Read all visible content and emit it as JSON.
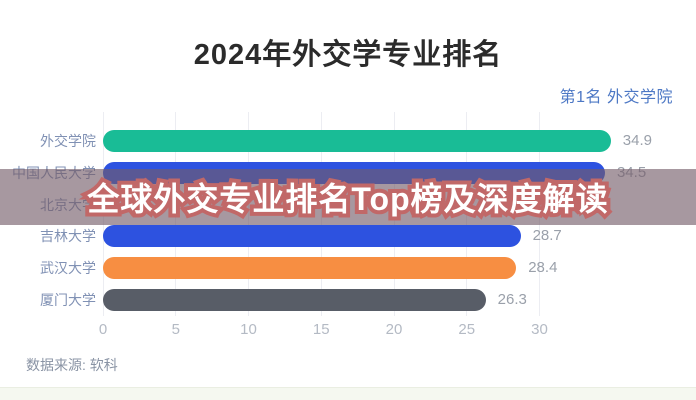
{
  "header": {
    "title": "2024年外交学专业排名",
    "rank_note": "第1名 外交学院"
  },
  "overlay": {
    "title": "全球外交专业排名Top榜及深度解读"
  },
  "footer": {
    "source": "数据来源: 软科"
  },
  "palette": {
    "rank_note_blue": "#4d78c5",
    "banner_background": "rgba(115,92,104,0.63)",
    "banner_text_fill": "#ffffff",
    "banner_text_stroke": "#c16868",
    "category_label": "#8091b4",
    "value_label": "#9aa0aa",
    "tick_label": "#b4bac4"
  },
  "chart_data": {
    "type": "bar",
    "orientation": "horizontal",
    "title": "2024年外交学专业排名",
    "categories": [
      "外交学院",
      "中国人民大学",
      "北京大学",
      "吉林大学",
      "武汉大学",
      "厦门大学"
    ],
    "values": [
      34.9,
      34.5,
      null,
      28.7,
      28.4,
      26.3
    ],
    "value_labels": [
      "34.9",
      "34.5",
      "",
      "28.7",
      "28.4",
      "26.3"
    ],
    "bar_colors": [
      "#19bc96",
      "#2d52e0",
      null,
      "#2d52e0",
      "#f78e42",
      "#585d67"
    ],
    "xticks": [
      0,
      5,
      10,
      15,
      20,
      25,
      30
    ],
    "xlim": [
      0,
      38
    ],
    "grid": true,
    "legend": null
  }
}
